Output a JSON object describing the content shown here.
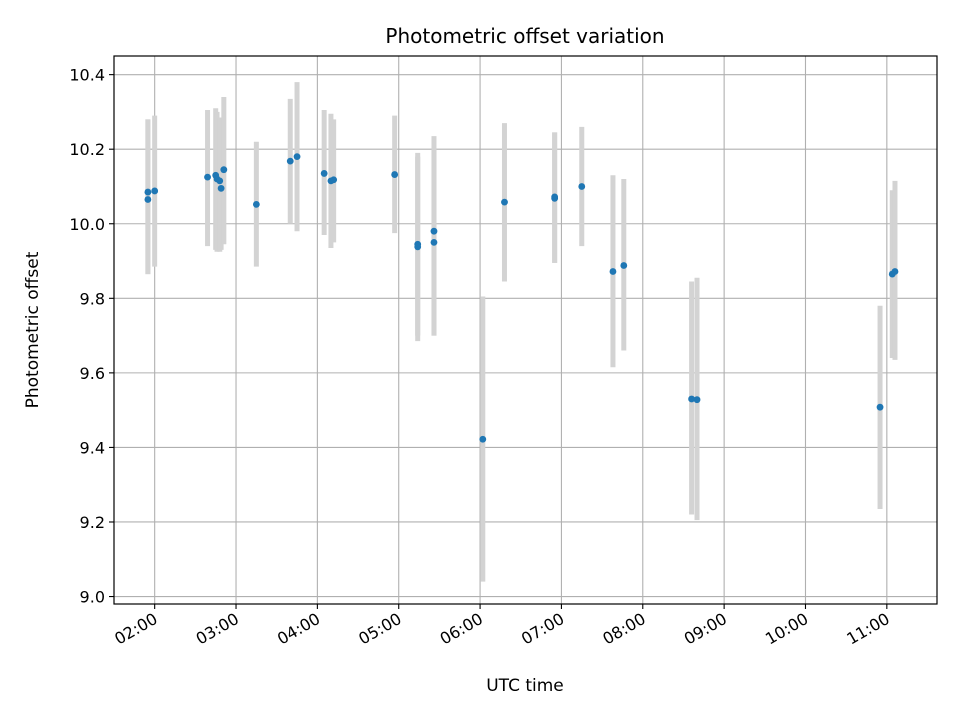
{
  "chart_data": {
    "type": "scatter",
    "title": "Photometric offset variation",
    "xlabel": "UTC time",
    "ylabel": "Photometric offset",
    "x_tick_labels": [
      "02:00",
      "03:00",
      "04:00",
      "05:00",
      "06:00",
      "07:00",
      "08:00",
      "09:00",
      "10:00",
      "11:00"
    ],
    "y_tick_labels": [
      "9.0",
      "9.2",
      "9.4",
      "9.6",
      "9.8",
      "10.0",
      "10.2",
      "10.4"
    ],
    "xlim": [
      "01:30",
      "11:37"
    ],
    "ylim": [
      8.98,
      10.45
    ],
    "grid": true,
    "point_color": "#1f77b4",
    "errorbar_color": "#d3d3d3",
    "series": [
      {
        "points": [
          {
            "x": "01:55",
            "y": 10.065,
            "err_low": 9.865,
            "err_high": 10.28
          },
          {
            "x": "01:55",
            "y": 10.085,
            "err_low": 9.865,
            "err_high": 10.28
          },
          {
            "x": "02:00",
            "y": 10.088,
            "err_low": 9.885,
            "err_high": 10.29
          },
          {
            "x": "02:39",
            "y": 10.125,
            "err_low": 9.94,
            "err_high": 10.305
          },
          {
            "x": "02:45",
            "y": 10.13,
            "err_low": 9.93,
            "err_high": 10.31
          },
          {
            "x": "02:46",
            "y": 10.12,
            "err_low": 9.925,
            "err_high": 10.3
          },
          {
            "x": "02:48",
            "y": 10.115,
            "err_low": 9.925,
            "err_high": 10.285
          },
          {
            "x": "02:49",
            "y": 10.095,
            "err_low": 9.93,
            "err_high": 10.285
          },
          {
            "x": "02:51",
            "y": 10.145,
            "err_low": 9.945,
            "err_high": 10.34
          },
          {
            "x": "03:15",
            "y": 10.052,
            "err_low": 9.885,
            "err_high": 10.22
          },
          {
            "x": "03:40",
            "y": 10.168,
            "err_low": 10.0,
            "err_high": 10.335
          },
          {
            "x": "03:45",
            "y": 10.18,
            "err_low": 9.98,
            "err_high": 10.38
          },
          {
            "x": "04:05",
            "y": 10.135,
            "err_low": 9.97,
            "err_high": 10.305
          },
          {
            "x": "04:10",
            "y": 10.115,
            "err_low": 9.935,
            "err_high": 10.295
          },
          {
            "x": "04:12",
            "y": 10.118,
            "err_low": 9.95,
            "err_high": 10.28
          },
          {
            "x": "04:57",
            "y": 10.132,
            "err_low": 9.975,
            "err_high": 10.29
          },
          {
            "x": "05:14",
            "y": 9.945,
            "err_low": 9.685,
            "err_high": 10.19
          },
          {
            "x": "05:14",
            "y": 9.938,
            "err_low": 9.7,
            "err_high": 10.18
          },
          {
            "x": "05:26",
            "y": 9.98,
            "err_low": 9.7,
            "err_high": 10.235
          },
          {
            "x": "05:26",
            "y": 9.95,
            "err_low": 9.7,
            "err_high": 10.2
          },
          {
            "x": "06:02",
            "y": 9.422,
            "err_low": 9.04,
            "err_high": 9.805
          },
          {
            "x": "06:18",
            "y": 10.058,
            "err_low": 9.845,
            "err_high": 10.27
          },
          {
            "x": "06:55",
            "y": 10.068,
            "err_low": 9.895,
            "err_high": 10.245
          },
          {
            "x": "06:55",
            "y": 10.072,
            "err_low": 9.895,
            "err_high": 10.245
          },
          {
            "x": "07:15",
            "y": 10.1,
            "err_low": 9.94,
            "err_high": 10.26
          },
          {
            "x": "07:38",
            "y": 9.872,
            "err_low": 9.615,
            "err_high": 10.13
          },
          {
            "x": "07:46",
            "y": 9.888,
            "err_low": 9.66,
            "err_high": 10.12
          },
          {
            "x": "08:36",
            "y": 9.53,
            "err_low": 9.22,
            "err_high": 9.845
          },
          {
            "x": "08:40",
            "y": 9.528,
            "err_low": 9.205,
            "err_high": 9.855
          },
          {
            "x": "10:55",
            "y": 9.508,
            "err_low": 9.235,
            "err_high": 9.78
          },
          {
            "x": "11:04",
            "y": 9.865,
            "err_low": 9.64,
            "err_high": 10.09
          },
          {
            "x": "11:06",
            "y": 9.872,
            "err_low": 9.635,
            "err_high": 10.115
          }
        ]
      }
    ]
  }
}
